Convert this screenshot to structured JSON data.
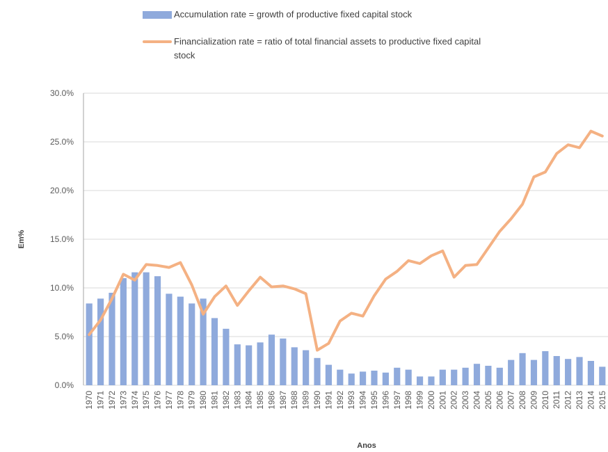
{
  "chart_data": {
    "type": "bar-line",
    "x_label": "Anos",
    "y_label": "Em%",
    "categories": [
      "1970",
      "1971",
      "1972",
      "1973",
      "1974",
      "1975",
      "1976",
      "1977",
      "1978",
      "1979",
      "1980",
      "1981",
      "1982",
      "1983",
      "1984",
      "1985",
      "1986",
      "1987",
      "1988",
      "1989",
      "1990",
      "1991",
      "1992",
      "1993",
      "1994",
      "1995",
      "1996",
      "1997",
      "1998",
      "1999",
      "2000",
      "2001",
      "2002",
      "2003",
      "2004",
      "2005",
      "2006",
      "2007",
      "2008",
      "2009",
      "2010",
      "2011",
      "2012",
      "2013",
      "2014",
      "2015"
    ],
    "series": [
      {
        "name": "Accumulation rate = growth of productive fixed capital stock",
        "type": "bar",
        "color": "#8faadc",
        "values": [
          8.4,
          8.9,
          9.5,
          11.0,
          11.6,
          11.6,
          11.2,
          9.4,
          9.1,
          8.4,
          8.9,
          6.9,
          5.8,
          4.2,
          4.1,
          4.4,
          5.2,
          4.8,
          3.9,
          3.6,
          2.8,
          2.1,
          1.6,
          1.2,
          1.4,
          1.5,
          1.3,
          1.8,
          1.6,
          0.9,
          0.9,
          1.6,
          1.6,
          1.8,
          2.2,
          2.0,
          1.8,
          2.6,
          3.3,
          2.6,
          3.5,
          3.0,
          2.7,
          2.9,
          2.5,
          1.9
        ]
      },
      {
        "name": "Financialization rate = ratio of total financial assets to productive fixed capital stock",
        "type": "line",
        "color": "#f4b183",
        "values": [
          5.2,
          6.7,
          8.9,
          11.4,
          10.8,
          12.4,
          12.3,
          12.1,
          12.6,
          10.3,
          7.3,
          9.1,
          10.2,
          8.2,
          9.7,
          11.1,
          10.1,
          10.2,
          9.9,
          9.4,
          3.6,
          4.3,
          6.6,
          7.4,
          7.1,
          9.2,
          10.9,
          11.7,
          12.8,
          12.5,
          13.3,
          13.8,
          11.1,
          12.3,
          12.4,
          14.1,
          15.8,
          17.1,
          18.6,
          21.4,
          21.9,
          23.8,
          24.7,
          24.4,
          26.1,
          25.6
        ]
      }
    ],
    "ylim": [
      0,
      30
    ],
    "yticks": [
      {
        "value": 0,
        "label": "0.0%"
      },
      {
        "value": 5,
        "label": "5.0%"
      },
      {
        "value": 10,
        "label": "10.0%"
      },
      {
        "value": 15,
        "label": "15.0%"
      },
      {
        "value": 20,
        "label": "20.0%"
      },
      {
        "value": 25,
        "label": "25.0%"
      },
      {
        "value": 30,
        "label": "30.0%"
      }
    ],
    "grid": true
  }
}
